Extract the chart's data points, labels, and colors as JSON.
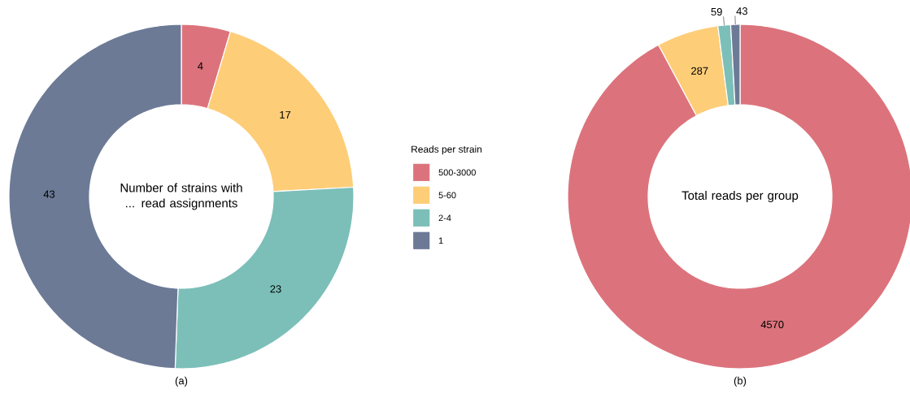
{
  "chart_data": [
    {
      "type": "donut",
      "title": "Number of strains with ... read assignments",
      "categories": [
        "500-3000",
        "5-60",
        "2-4",
        "1"
      ],
      "values": [
        4,
        17,
        23,
        43
      ],
      "colors": [
        "#dc737c",
        "#fecd78",
        "#7bbfb8",
        "#6c7a96"
      ],
      "data_labels": true,
      "legend": "right",
      "legend_title": "Reads per strain",
      "annotations": [
        "(a)"
      ]
    },
    {
      "type": "donut",
      "title": "Total reads per group",
      "categories": [
        null,
        null,
        null,
        null
      ],
      "values": [
        4570,
        287,
        59,
        43
      ],
      "colors": [
        "#dc737c",
        "#fecd78",
        "#7bbfb8",
        "#6c7a96"
      ],
      "data_labels": true,
      "annotations": [
        "(b)"
      ]
    }
  ]
}
